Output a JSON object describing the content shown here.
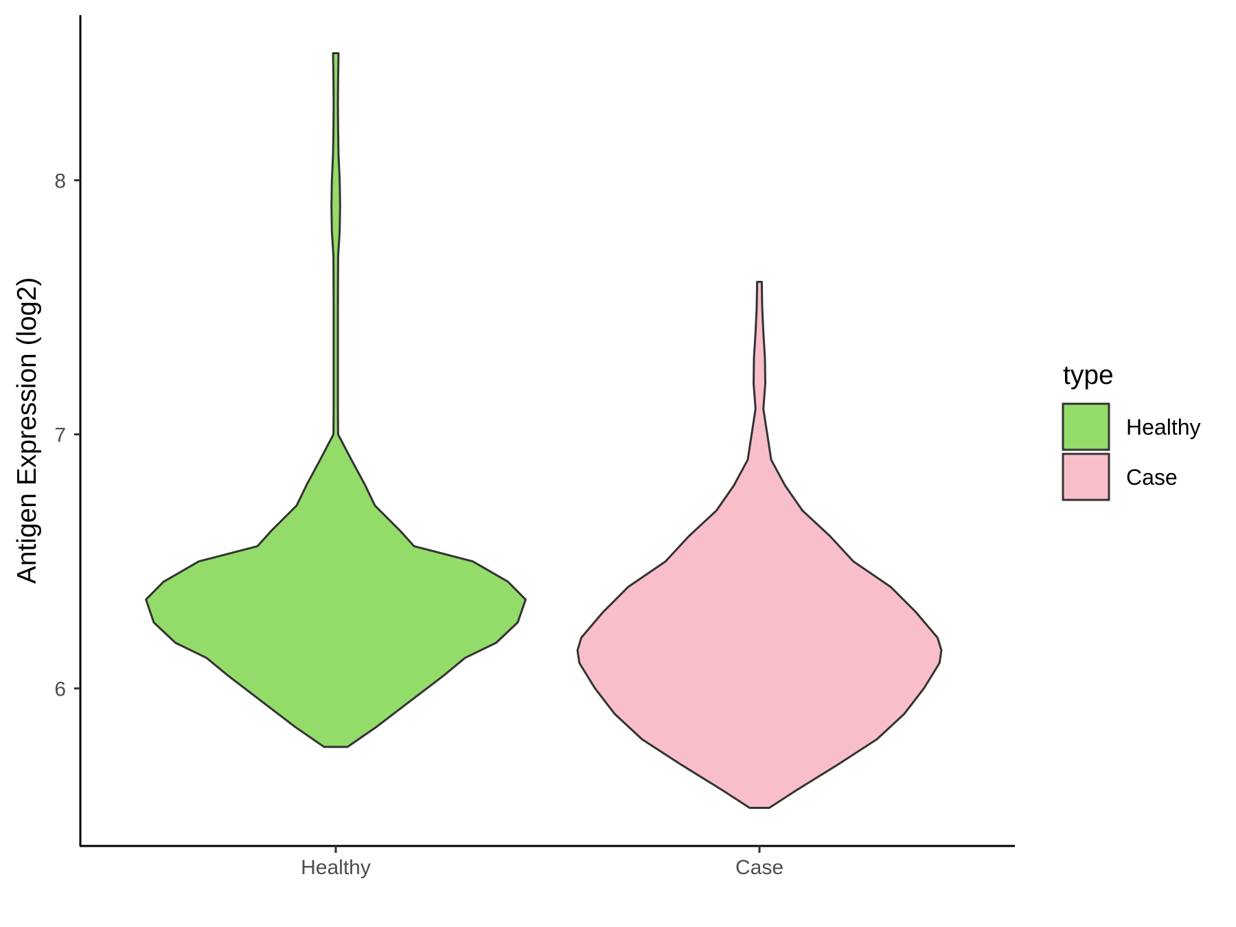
{
  "chart_data": {
    "type": "violin",
    "title": "",
    "xlabel": "",
    "ylabel": "Antigen Expression (log2)",
    "categories": [
      "Healthy",
      "Case"
    ],
    "yticks": [
      6,
      7,
      8
    ],
    "ylim": [
      5.38,
      8.65
    ],
    "grid": false,
    "legend": {
      "title": "type",
      "placement": "right",
      "entries": [
        {
          "label": "Healthy",
          "color": "#93DC69"
        },
        {
          "label": "Case",
          "color": "#F8BFCB"
        }
      ]
    },
    "series": [
      {
        "category": "Healthy",
        "color": "#93DC69",
        "min": 5.77,
        "max": 8.5,
        "density_profile": [
          [
            5.77,
            0.06
          ],
          [
            5.85,
            0.21
          ],
          [
            5.95,
            0.38
          ],
          [
            6.05,
            0.55
          ],
          [
            6.12,
            0.66
          ],
          [
            6.18,
            0.82
          ],
          [
            6.26,
            0.93
          ],
          [
            6.35,
            0.97
          ],
          [
            6.42,
            0.88
          ],
          [
            6.5,
            0.7
          ],
          [
            6.56,
            0.4
          ],
          [
            6.62,
            0.33
          ],
          [
            6.72,
            0.2
          ],
          [
            6.8,
            0.15
          ],
          [
            6.9,
            0.08
          ],
          [
            7.0,
            0.012
          ],
          [
            7.1,
            0.011
          ],
          [
            7.5,
            0.011
          ],
          [
            7.7,
            0.012
          ],
          [
            7.8,
            0.02
          ],
          [
            7.9,
            0.022
          ],
          [
            8.0,
            0.02
          ],
          [
            8.1,
            0.014
          ],
          [
            8.2,
            0.012
          ],
          [
            8.3,
            0.011
          ],
          [
            8.4,
            0.012
          ],
          [
            8.5,
            0.014
          ]
        ]
      },
      {
        "category": "Case",
        "color": "#F8BFCB",
        "min": 5.53,
        "max": 7.6,
        "density_profile": [
          [
            5.53,
            0.05
          ],
          [
            5.6,
            0.19
          ],
          [
            5.7,
            0.4
          ],
          [
            5.8,
            0.6
          ],
          [
            5.9,
            0.74
          ],
          [
            6.0,
            0.84
          ],
          [
            6.1,
            0.92
          ],
          [
            6.15,
            0.93
          ],
          [
            6.2,
            0.91
          ],
          [
            6.3,
            0.8
          ],
          [
            6.4,
            0.67
          ],
          [
            6.5,
            0.48
          ],
          [
            6.6,
            0.36
          ],
          [
            6.7,
            0.22
          ],
          [
            6.8,
            0.13
          ],
          [
            6.9,
            0.06
          ],
          [
            7.0,
            0.04
          ],
          [
            7.1,
            0.02
          ],
          [
            7.2,
            0.03
          ],
          [
            7.3,
            0.028
          ],
          [
            7.4,
            0.02
          ],
          [
            7.5,
            0.014
          ],
          [
            7.6,
            0.012
          ]
        ]
      }
    ]
  }
}
